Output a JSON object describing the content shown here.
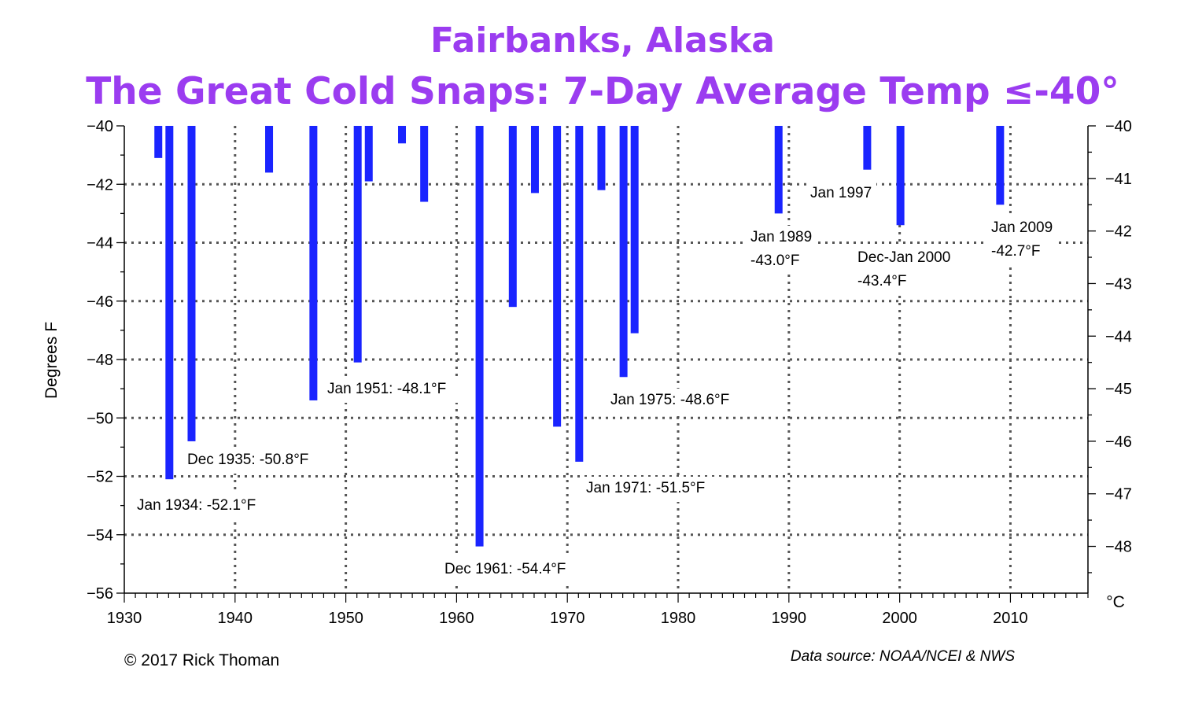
{
  "chart_data": {
    "type": "bar",
    "title_line1": "Fairbanks, Alaska",
    "title_line2": "The Great Cold Snaps: 7-Day Average Temp ≤-40°",
    "ylabel": "Degrees F",
    "y2label": "°C",
    "xlim": [
      1930,
      2017
    ],
    "ylim": [
      -56,
      -40
    ],
    "y2lim": [
      -48.89,
      -40
    ],
    "grid": true,
    "x_ticks": [
      1930,
      1940,
      1950,
      1960,
      1970,
      1980,
      1990,
      2000,
      2010
    ],
    "y_ticks": [
      -40,
      -42,
      -44,
      -46,
      -48,
      -50,
      -52,
      -54,
      -56
    ],
    "y2_ticks": [
      -40,
      -41,
      -42,
      -43,
      -44,
      -45,
      -46,
      -47,
      -48
    ],
    "baseline": -40,
    "color": "#1a24ff",
    "series": [
      {
        "x": [
          1933,
          1934,
          1936,
          1943,
          1947,
          1951,
          1952,
          1955,
          1957,
          1962,
          1965,
          1967,
          1969,
          1971,
          1973,
          1975,
          1976,
          1989,
          1997,
          2000,
          2009
        ],
        "values": [
          -41.1,
          -52.1,
          -50.8,
          -41.6,
          -49.4,
          -48.1,
          -41.9,
          -40.6,
          -42.6,
          -54.4,
          -46.2,
          -42.3,
          -50.3,
          -51.5,
          -42.2,
          -48.6,
          -47.1,
          -43.0,
          -41.5,
          -43.4,
          -42.7
        ]
      }
    ],
    "annotations": [
      {
        "id": "jan-1934",
        "lines": [
          "Jan 1934: -52.1°F"
        ]
      },
      {
        "id": "dec-1935",
        "lines": [
          "Dec 1935: -50.8°F"
        ]
      },
      {
        "id": "jan-1951",
        "lines": [
          "Jan 1951: -48.1°F"
        ]
      },
      {
        "id": "dec-1961",
        "lines": [
          "Dec 1961: -54.4°F"
        ]
      },
      {
        "id": "jan-1971",
        "lines": [
          "Jan 1971: -51.5°F"
        ]
      },
      {
        "id": "jan-1975",
        "lines": [
          "Jan 1975: -48.6°F"
        ]
      },
      {
        "id": "jan-1989",
        "lines": [
          "Jan 1989",
          "-43.0°F"
        ]
      },
      {
        "id": "jan-1997",
        "lines": [
          "Jan 1997"
        ]
      },
      {
        "id": "dec-jan-2000",
        "lines": [
          "Dec-Jan 2000",
          "-43.4°F"
        ]
      },
      {
        "id": "jan-2009",
        "lines": [
          "Jan 2009",
          "-42.7°F"
        ]
      }
    ],
    "copyright": "© 2017 Rick Thoman",
    "source": "Data source: NOAA/NCEI & NWS"
  }
}
